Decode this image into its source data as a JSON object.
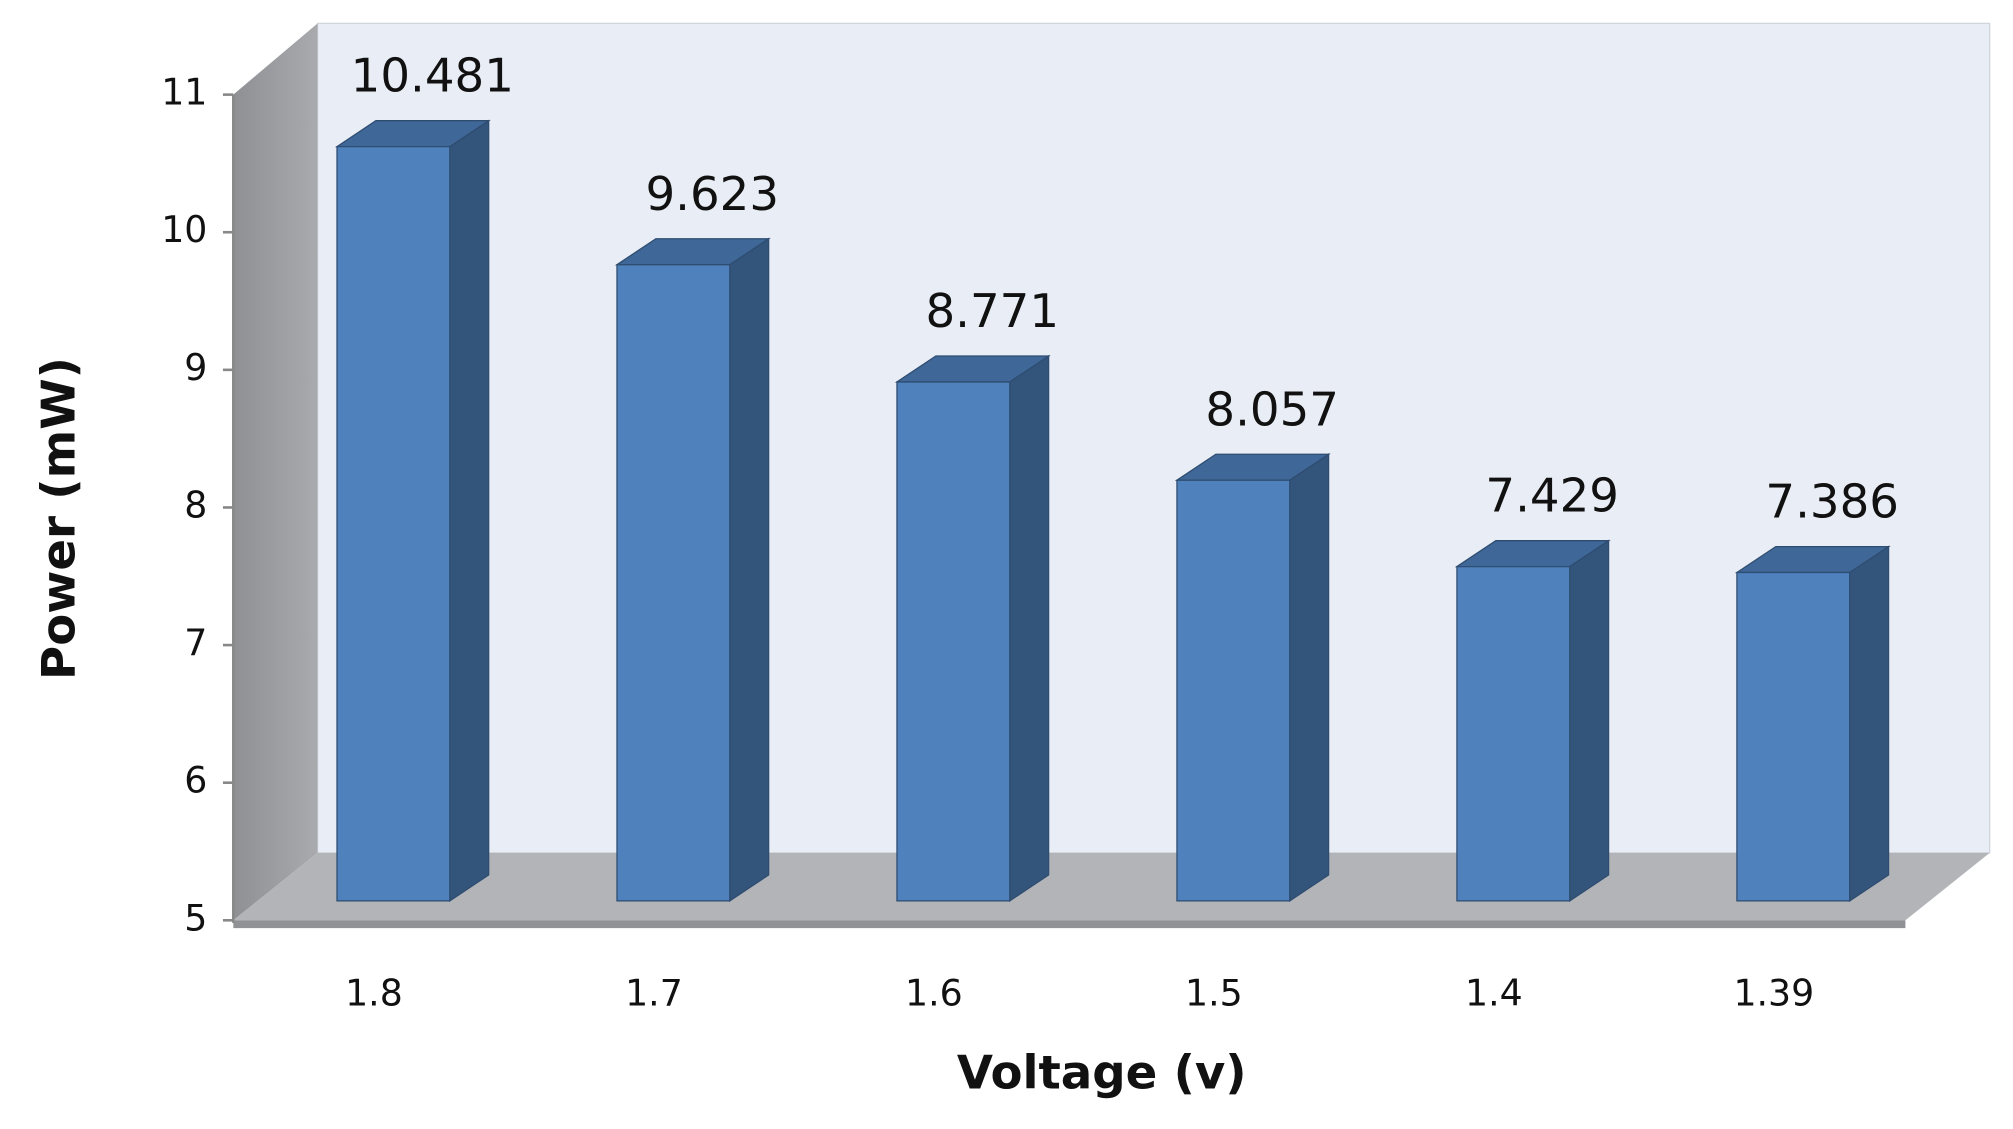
{
  "chart_data": {
    "type": "bar3d",
    "x_label": "Voltage (v)",
    "y_label": "Power (mW)",
    "categories": [
      "1.8",
      "1.7",
      "1.6",
      "1.5",
      "1.4",
      "1.39"
    ],
    "values": [
      10.481,
      9.623,
      8.771,
      8.057,
      7.429,
      7.386
    ],
    "color": "#4f81bd",
    "ylim": [
      5,
      11
    ],
    "yticks": [
      5,
      6,
      7,
      8,
      9,
      10,
      11
    ]
  }
}
